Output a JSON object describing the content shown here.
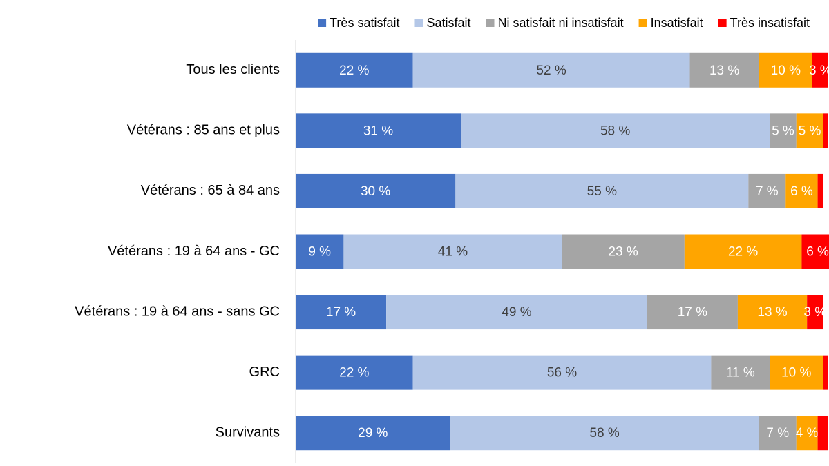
{
  "chart_data": {
    "type": "stacked-bar-horizontal",
    "categories": [
      "Tous les clients",
      "Vétérans : 85 ans et plus",
      "Vétérans : 65 à 84 ans",
      "Vétérans : 19 à 64 ans - GC",
      "Vétérans : 19 à 64 ans - sans GC",
      "GRC",
      "Survivants"
    ],
    "series": [
      {
        "name": "Très satisfait",
        "color": "#4472c4",
        "values": [
          22,
          31,
          30,
          9,
          17,
          22,
          29
        ],
        "value_labels": [
          "22 %",
          "31 %",
          "30 %",
          "9 %",
          "17 %",
          "22 %",
          "29 %"
        ]
      },
      {
        "name": "Satisfait",
        "color": "#b4c7e7",
        "values": [
          52,
          58,
          55,
          41,
          49,
          56,
          58
        ],
        "value_labels": [
          "52 %",
          "58 %",
          "55 %",
          "41 %",
          "49 %",
          "56 %",
          "58 %"
        ]
      },
      {
        "name": "Ni satisfait ni insatisfait",
        "color": "#a5a5a5",
        "values": [
          13,
          5,
          7,
          23,
          17,
          11,
          7
        ],
        "value_labels": [
          "13 %",
          "5 %",
          "7 %",
          "23 %",
          "17 %",
          "11 %",
          "7 %"
        ]
      },
      {
        "name": "Insatisfait",
        "color": "#ffa500",
        "values": [
          10,
          5,
          6,
          22,
          13,
          10,
          4
        ],
        "value_labels": [
          "10 %",
          "5 %",
          "6 %",
          "22 %",
          "13 %",
          "10 %",
          "4 %"
        ]
      },
      {
        "name": "Très insatisfait",
        "color": "#ff0000",
        "values": [
          3,
          1,
          1,
          6,
          3,
          1,
          2
        ],
        "value_labels": [
          "3 %",
          null,
          null,
          "6 %",
          "3 %",
          null,
          null
        ]
      }
    ],
    "xlim": [
      0,
      100
    ],
    "legend": "top"
  }
}
